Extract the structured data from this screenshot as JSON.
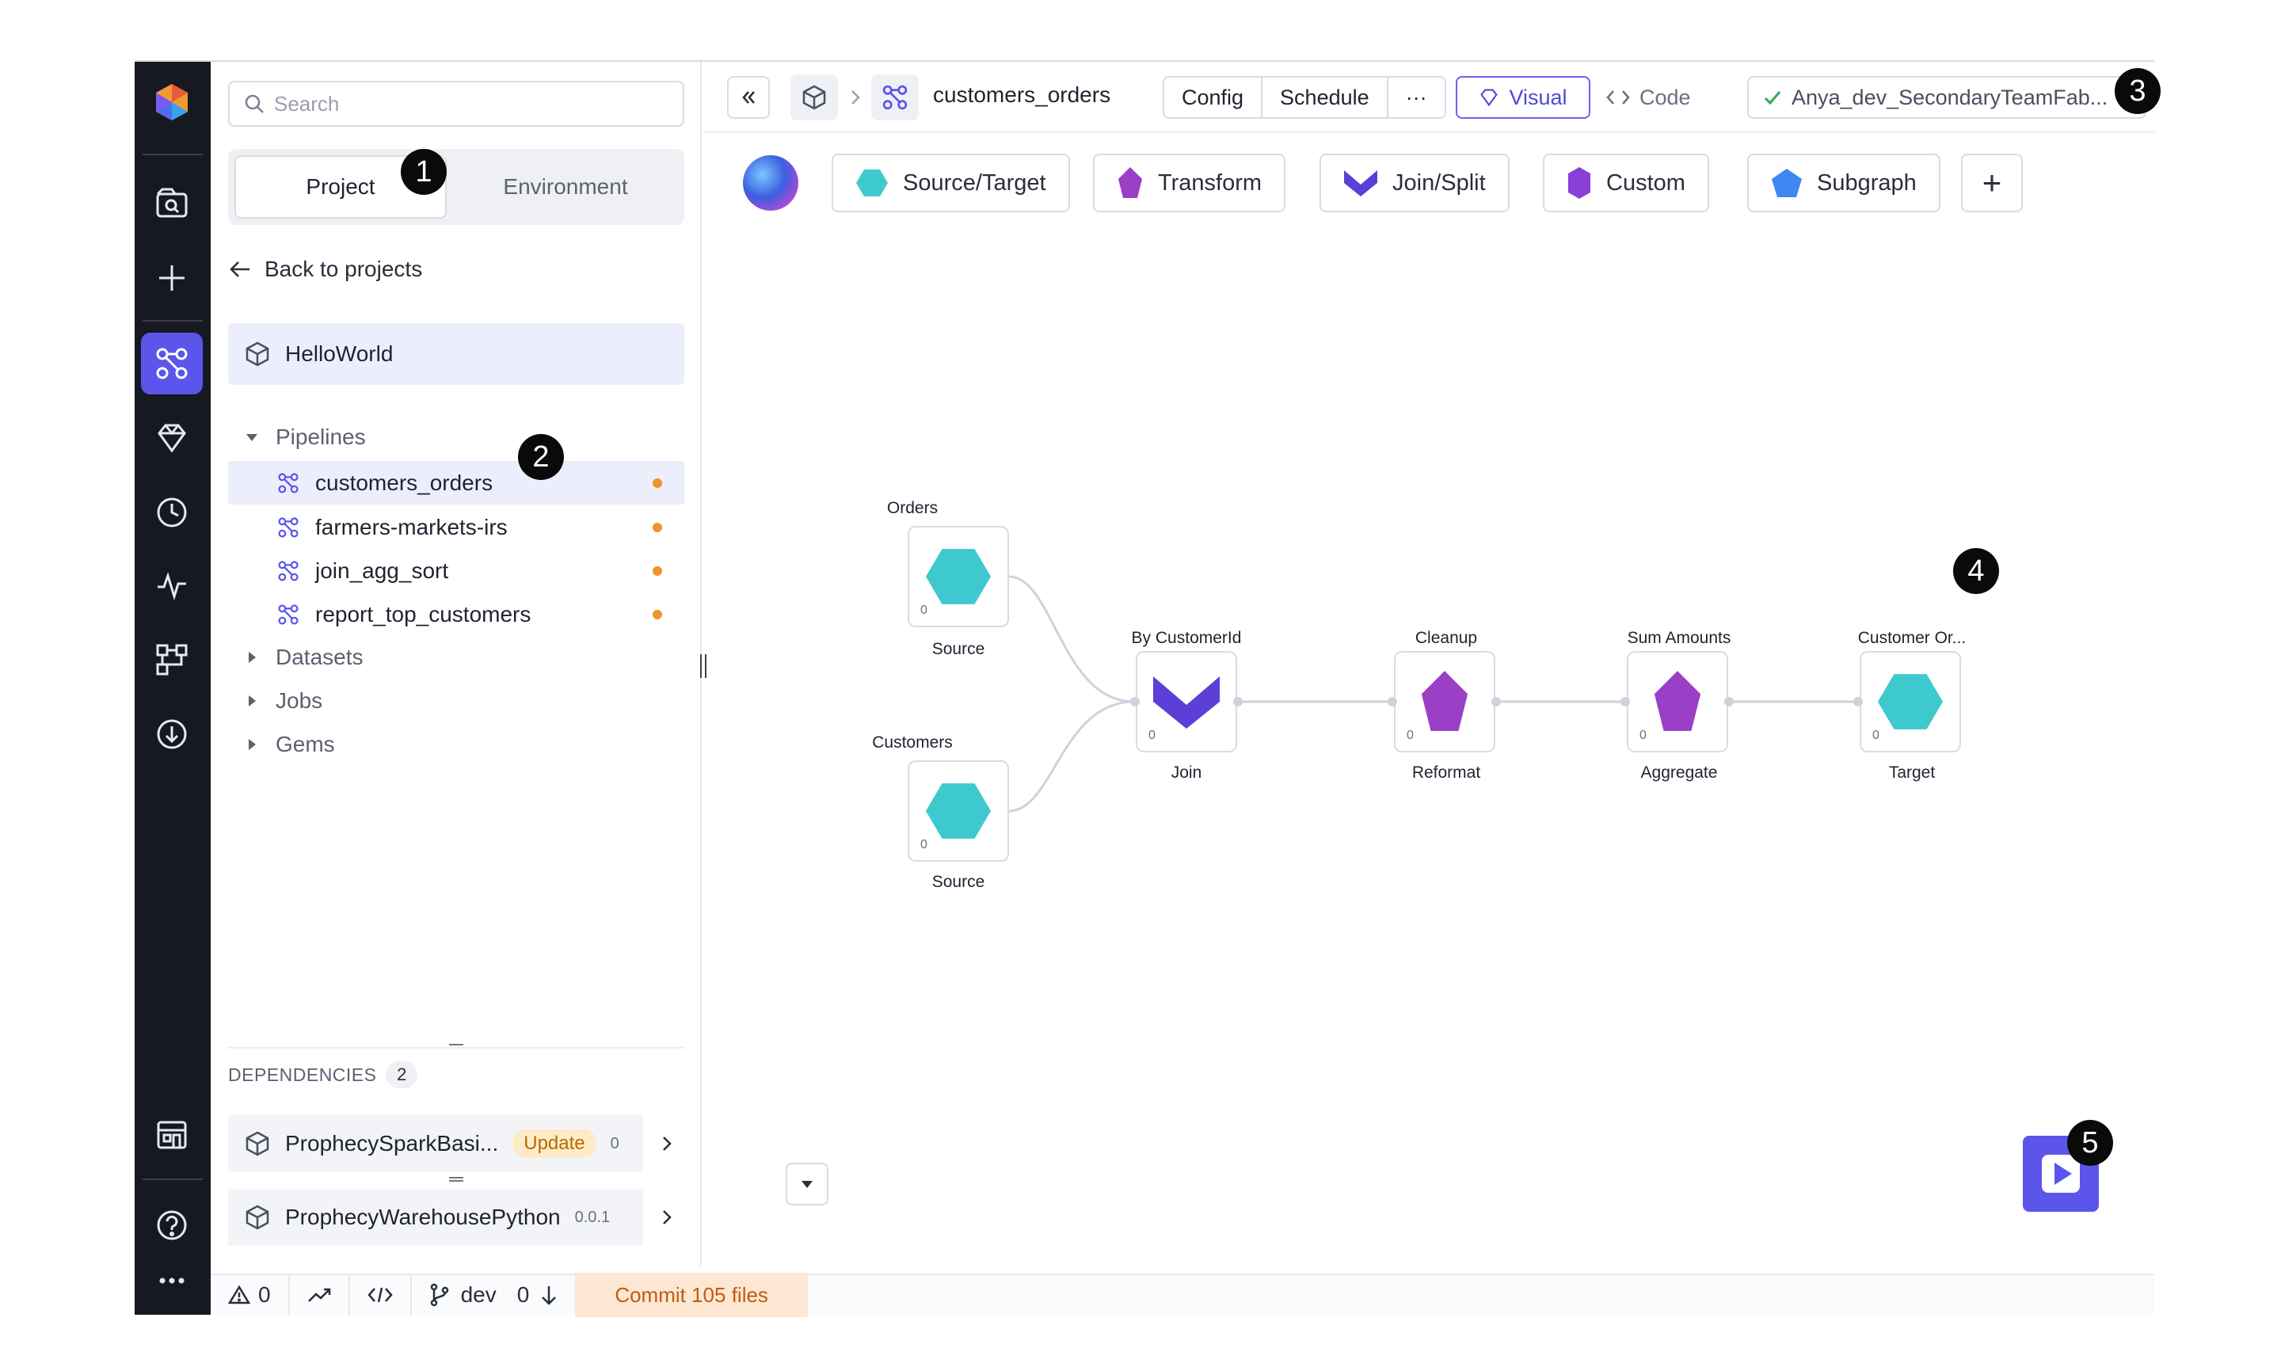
{
  "colors": {
    "rail_bg": "#161922",
    "accent": "#5b55ec",
    "teal_gem": "#3ec9cf",
    "purple_gem": "#9b3fc6",
    "join_gem": "#5b3fd6",
    "subgraph_gem": "#3f86f0",
    "pending_dot": "#f0932b",
    "commit_bg": "#fde7d3"
  },
  "rail": {
    "items": [
      {
        "icon": "logo-icon"
      },
      {
        "icon": "browse-icon"
      },
      {
        "icon": "plus-icon"
      },
      {
        "icon": "pipeline-icon",
        "active": true
      },
      {
        "icon": "diamond-icon"
      },
      {
        "icon": "clock-icon"
      },
      {
        "icon": "pulse-icon"
      },
      {
        "icon": "lineage-icon"
      },
      {
        "icon": "download-icon"
      },
      {
        "icon": "marketplace-icon"
      },
      {
        "icon": "help-icon"
      },
      {
        "icon": "more-icon"
      }
    ]
  },
  "sidebar": {
    "search_placeholder": "Search",
    "tabs": [
      "Project",
      "Environment"
    ],
    "back_label": "Back to projects",
    "project_name": "HelloWorld",
    "sections": {
      "pipelines": "Pipelines",
      "datasets": "Datasets",
      "jobs": "Jobs",
      "gems": "Gems"
    },
    "pipelines": [
      "customers_orders",
      "farmers-markets-irs",
      "join_agg_sort",
      "report_top_customers"
    ],
    "dependencies": {
      "label": "DEPENDENCIES",
      "count": "2",
      "items": [
        {
          "name": "ProphecySparkBasi...",
          "badge": "Update",
          "version": "0"
        },
        {
          "name": "ProphecyWarehousePython",
          "version": "0.0.1"
        }
      ]
    }
  },
  "header": {
    "pipeline_name": "customers_orders",
    "config_label": "Config",
    "schedule_label": "Schedule",
    "more_label": "···",
    "visual_label": "Visual",
    "code_label": "Code",
    "branch_status": "Anya_dev_SecondaryTeamFab..."
  },
  "gem_toolbar": {
    "items": [
      "Source/Target",
      "Transform",
      "Join/Split",
      "Custom",
      "Subgraph"
    ],
    "add_label": "+"
  },
  "canvas": {
    "nodes": [
      {
        "title": "Orders",
        "type": "Source",
        "count": "0"
      },
      {
        "title": "Customers",
        "type": "Source",
        "count": "0"
      },
      {
        "title": "By CustomerId",
        "type": "Join",
        "count": "0"
      },
      {
        "title": "Cleanup",
        "type": "Reformat",
        "count": "0"
      },
      {
        "title": "Sum Amounts",
        "type": "Aggregate",
        "count": "0"
      },
      {
        "title": "Customer Or...",
        "type": "Target",
        "count": "0"
      }
    ]
  },
  "status_bar": {
    "warnings": "0",
    "branch": "dev",
    "behind": "0",
    "commit_label": "Commit 105 files"
  },
  "markers": [
    "1",
    "2",
    "3",
    "4",
    "5"
  ]
}
